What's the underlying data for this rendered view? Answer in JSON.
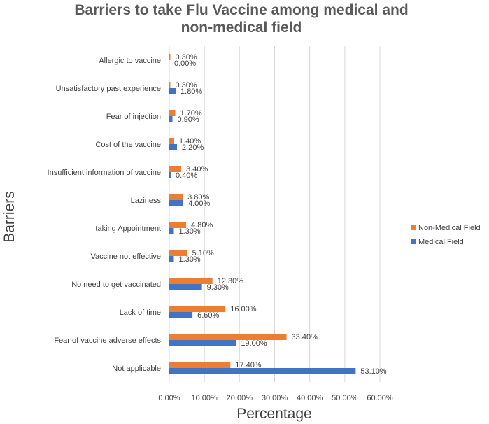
{
  "chart_data": {
    "type": "bar",
    "orientation": "horizontal",
    "title": "Barriers to take Flu Vaccine among medical and non-medical field",
    "title_lines": [
      "Barriers to take Flu Vaccine among medical and",
      "non-medical field"
    ],
    "xlabel": "Percentage",
    "ylabel": "Barriers",
    "xlim": [
      0,
      60
    ],
    "xticks": [
      "0.00%",
      "10.00%",
      "20.00%",
      "30.00%",
      "40.00%",
      "50.00%",
      "60.00%"
    ],
    "xtick_values": [
      0,
      10,
      20,
      30,
      40,
      50,
      60
    ],
    "grid": true,
    "legend_position": "right",
    "categories": [
      "Allergic to   vaccine",
      "Unsatisfactory past experience",
      "Fear of injection",
      "Cost of the vaccine",
      "Insufficient information  of vaccine",
      "Laziness",
      "taking Appointment",
      "Vaccine not effective",
      "No need to get vaccinated",
      "Lack of time",
      "Fear of vaccine adverse effects",
      "Not applicable"
    ],
    "series": [
      {
        "name": "Non-Medical Field",
        "color": "#ed7d31",
        "values": [
          0.3,
          0.3,
          1.7,
          1.4,
          3.4,
          3.8,
          4.8,
          5.1,
          12.3,
          16.0,
          33.4,
          17.4
        ],
        "labels": [
          "0.30%",
          "0.30%",
          "1.70%",
          "1.40%",
          "3.40%",
          "3.80%",
          "4.80%",
          "5.10%",
          "12.30%",
          "16.00%",
          "33.40%",
          "17.40%"
        ]
      },
      {
        "name": "Medical Field",
        "color": "#4472c4",
        "values": [
          0.0,
          1.8,
          0.9,
          2.2,
          0.4,
          4.0,
          1.3,
          1.3,
          9.3,
          6.6,
          19.0,
          53.1
        ],
        "labels": [
          "0.00%",
          "1.80%",
          "0.90%",
          "2.20%",
          "0.40%",
          "4.00%",
          "1.30%",
          "1.30%",
          "9.30%",
          "6.60%",
          "19.00%",
          "53.10%"
        ]
      }
    ]
  }
}
